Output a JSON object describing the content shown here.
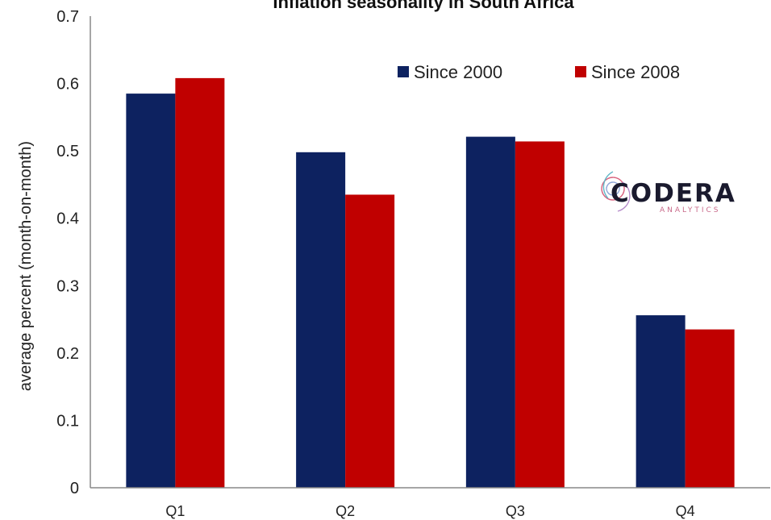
{
  "chart_data": {
    "type": "bar",
    "title": "Inflation seasonality in South Africa",
    "xlabel": "",
    "ylabel": "average percent (month-on-month)",
    "categories": [
      "Q1",
      "Q2",
      "Q3",
      "Q4"
    ],
    "series": [
      {
        "name": "Since 2000",
        "color": "#0d2260",
        "values": [
          0.585,
          0.498,
          0.521,
          0.256
        ]
      },
      {
        "name": "Since 2008",
        "color": "#c00000",
        "values": [
          0.608,
          0.435,
          0.514,
          0.235
        ]
      }
    ],
    "ylim": [
      0,
      0.7
    ],
    "yticks": [
      "0",
      "0.1",
      "0.2",
      "0.3",
      "0.4",
      "0.5",
      "0.6",
      "0.7"
    ],
    "grid": false,
    "legend_position": "top-right"
  },
  "logo": {
    "name": "CODERA",
    "tagline": "ANALYTICS"
  }
}
